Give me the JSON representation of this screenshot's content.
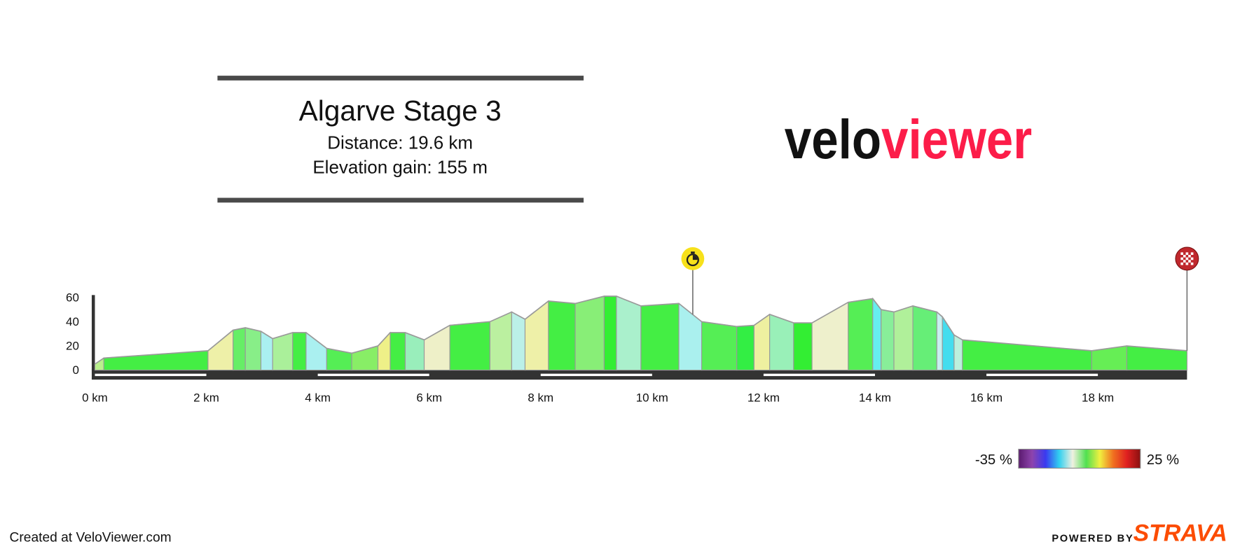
{
  "chart_data": {
    "type": "area",
    "title": "Algarve Stage 3",
    "distance_label": "Distance: 19.6 km",
    "elevation_gain_label": "Elevation gain: 155 m",
    "x": [
      0,
      0.16,
      2.03,
      2.48,
      2.7,
      2.98,
      3.19,
      3.55,
      3.79,
      4.16,
      4.61,
      5.08,
      5.3,
      5.57,
      5.91,
      6.37,
      7.09,
      7.48,
      7.72,
      8.14,
      8.62,
      9.14,
      9.36,
      9.8,
      10.48,
      10.89,
      11.52,
      11.83,
      12.11,
      12.54,
      12.87,
      13.52,
      13.96,
      14.11,
      14.34,
      14.68,
      15.11,
      15.21,
      15.42,
      15.57,
      17.89,
      18.52,
      19.6
    ],
    "series": [
      {
        "values": [
          5,
          10,
          16,
          33,
          35,
          32,
          26,
          31,
          31,
          18,
          14,
          20,
          31,
          31,
          25,
          37,
          40,
          48,
          42,
          57,
          55,
          61,
          61,
          53,
          55,
          40,
          36,
          37,
          46,
          39,
          39,
          56,
          59,
          50,
          48,
          53,
          48,
          44,
          29,
          25,
          16,
          20,
          16
        ],
        "segment_colors": [
          "#b9f08c",
          "#44ee44",
          "#eef0a8",
          "#66ee66",
          "#88ee88",
          "#aaf0f0",
          "#aaf09a",
          "#44ee44",
          "#aaf0f0",
          "#55ee55",
          "#88ee66",
          "#eef088",
          "#44ee44",
          "#99eebb",
          "#eef0c8",
          "#44ee44",
          "#bbf0a0",
          "#bbf0e8",
          "#eef0a8",
          "#44ee44",
          "#88ee77",
          "#33ee33",
          "#aaf0cc",
          "#44ee44",
          "#aaf0ee",
          "#55ee55",
          "#33ee44",
          "#eef0a0",
          "#99f0b8",
          "#33ee33",
          "#eef0cc",
          "#55ee55",
          "#66eeee",
          "#88ee99",
          "#b0f09a",
          "#66ee77",
          "#c8f0f0",
          "#44ddee",
          "#bbf0dd",
          "#44ee44",
          "#66ee55",
          "#44ee44"
        ]
      }
    ],
    "xlim": [
      0,
      19.6
    ],
    "ylim": [
      0,
      60
    ],
    "xticks": [
      {
        "value": 0,
        "label": "0 km"
      },
      {
        "value": 2,
        "label": "2 km"
      },
      {
        "value": 4,
        "label": "4 km"
      },
      {
        "value": 6,
        "label": "6 km"
      },
      {
        "value": 8,
        "label": "8 km"
      },
      {
        "value": 10,
        "label": "10 km"
      },
      {
        "value": 12,
        "label": "12 km"
      },
      {
        "value": 14,
        "label": "14 km"
      },
      {
        "value": 16,
        "label": "16 km"
      },
      {
        "value": 18,
        "label": "18 km"
      }
    ],
    "yticks": [
      0,
      20,
      40,
      60
    ],
    "markers": [
      {
        "x": 10.73,
        "icon": "timer"
      },
      {
        "x": 19.6,
        "icon": "finish"
      }
    ],
    "gradient_scale": {
      "range": [
        {
          "value": -35,
          "label": "-35 %"
        },
        {
          "value": 25,
          "label": "25 %"
        }
      ],
      "colors": [
        "#5a1a6e",
        "#8e44ad",
        "#3a3af0",
        "#30d0f0",
        "#f0f0e0",
        "#50e050",
        "#f0f040",
        "#f07020",
        "#e02020",
        "#8a1010"
      ]
    }
  },
  "logo": {
    "part1": "velo",
    "part2": "viewer"
  },
  "footer": {
    "credit": "Created at VeloViewer.com",
    "powered_by": "POWERED BY",
    "brand": "STRAVA"
  }
}
